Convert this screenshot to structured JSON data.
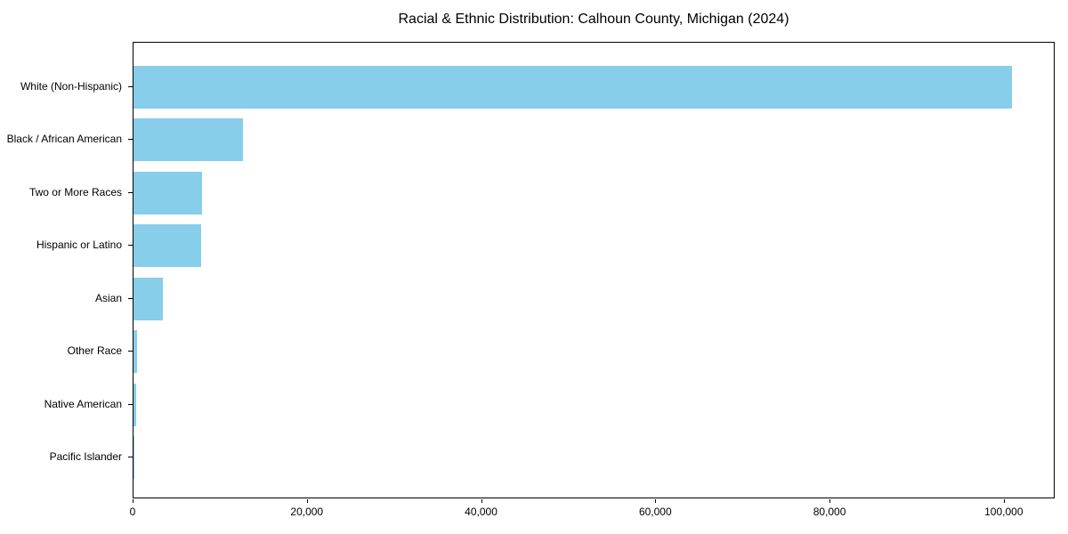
{
  "chart_data": {
    "type": "bar",
    "orientation": "horizontal",
    "title": "Racial & Ethnic Distribution: Calhoun County, Michigan (2024)",
    "categories": [
      "White (Non-Hispanic)",
      "Black / African American",
      "Two or More Races",
      "Hispanic or Latino",
      "Asian",
      "Other Race",
      "Native American",
      "Pacific Islander"
    ],
    "values": [
      100800,
      12600,
      7900,
      7800,
      3350,
      420,
      340,
      60
    ],
    "xlabel": "",
    "ylabel": "",
    "xlim": [
      0,
      105840
    ],
    "xtick_values": [
      0,
      20000,
      40000,
      60000,
      80000,
      100000
    ],
    "xtick_labels": [
      "0",
      "20,000",
      "40,000",
      "60,000",
      "80,000",
      "100,000"
    ],
    "bar_color": "#87ceeb",
    "grid": false,
    "legend": "none",
    "frame": "full-box"
  }
}
